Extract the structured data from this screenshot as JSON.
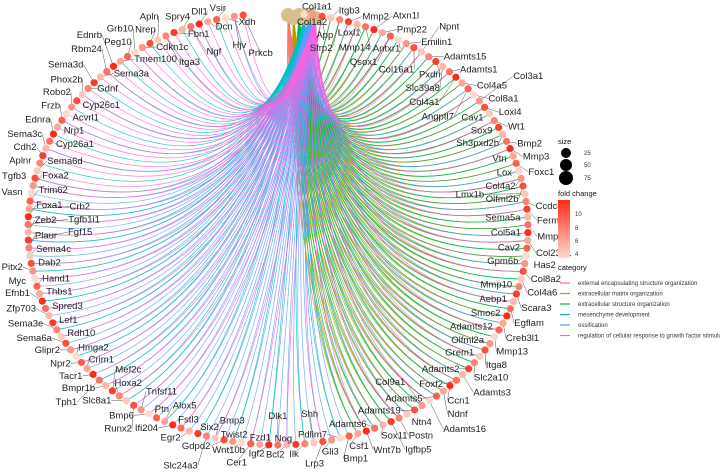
{
  "network": {
    "category_nodes": [
      "external encapsulating structure organization",
      "extracellular matrix organization",
      "extracellular structure organization",
      "mesenchyme development",
      "ossification",
      "regulation of cellular response to growth factor stimulus"
    ],
    "genes": [
      "Col1a1",
      "Col1a2",
      "App",
      "Itgb3",
      "Sfrp2",
      "Mmp2",
      "Loxl1",
      "Mmp14",
      "Atxn1l",
      "Pmp22",
      "Qsox1",
      "Antxr1",
      "Emilin1",
      "Col16a1",
      "Npnt",
      "Adamts15",
      "Pxdn",
      "Slc39a8",
      "Adamts1",
      "Col4a1",
      "Col4a5",
      "Angptl7",
      "Col8a1",
      "Col3a1",
      "Loxl4",
      "Cav1",
      "Wt1",
      "Sox9",
      "Sh3pxd2b",
      "Bmp2",
      "Mmp3",
      "Vtn",
      "Foxc1",
      "Lox",
      "Col4a2",
      "Olfml2b",
      "Lmx1b",
      "Ccdc80",
      "Fermt1",
      "Sema5a",
      "Mmp16",
      "Col5a1",
      "Col23a1",
      "Cav2",
      "Gpm6b",
      "Has2",
      "Col8a2",
      "Col4a6",
      "Mmp10",
      "Scara3",
      "Aebp1",
      "Egflam",
      "Smoc2",
      "Creb3l1",
      "Adamts12",
      "Mmp13",
      "Olfml2a",
      "Itga8",
      "Grem1",
      "Slc2a10",
      "Adamts2",
      "Adamts3",
      "Foxf2",
      "Ccn1",
      "Ndnf",
      "Adamts5",
      "Adamts16",
      "Col9a1",
      "Adamts19",
      "Ntn4",
      "Postn",
      "Igfbp5",
      "Sox11",
      "Adamts6",
      "Wnt7b",
      "Csf1",
      "Bmp1",
      "Pdlim7",
      "Gli3",
      "Lrp3",
      "Shh",
      "Ilk",
      "Nog",
      "Bcl2",
      "Dlk1",
      "Igf2",
      "Fzd1",
      "Cer1",
      "Wnt10b",
      "Twist2",
      "Gdpd2",
      "Bmp3",
      "Slc24a3",
      "Six2",
      "Egr2",
      "Fstl3",
      "Ifi204",
      "Alox5",
      "Ptn",
      "Bmp6",
      "Tnfsf11",
      "Runx2",
      "Slc8a1",
      "Hoxa2",
      "Mef2c",
      "Bmpr1b",
      "Tph1",
      "Tacr1",
      "Crim1",
      "Npr2",
      "Hmga2",
      "Glipr2",
      "Sema6a",
      "Rdh10",
      "Sema3e",
      "Lef1",
      "Zfp703",
      "Spred3",
      "Efnb1",
      "Thbs1",
      "Hand1",
      "Myc",
      "Pitx2",
      "Dab2",
      "Sema4c",
      "Plaur",
      "Fgf15",
      "Zeb2",
      "Tgfb1i1",
      "Foxa1",
      "Crb2",
      "Trim62",
      "Vasn",
      "Foxa2",
      "Tgfb3",
      "Sema6d",
      "Aplnr",
      "Cdh2",
      "Sema3c",
      "Cyp26a1",
      "Ednra",
      "Nrp1",
      "Frzb",
      "Acvrl1",
      "Robo2",
      "Cyp26c1",
      "Phox2b",
      "Gdnf",
      "Sema3d",
      "Sema3a",
      "Rbm24",
      "Ednrb",
      "Tmem100",
      "Peg10",
      "Grb10",
      "Cdkn1c",
      "Nrep",
      "Apln",
      "Itga3",
      "Fbn1",
      "Spry4",
      "Ngf",
      "Dll1",
      "Dcn",
      "Vsir",
      "Xdh",
      "Hjv",
      "Prkcb"
    ]
  },
  "legend": {
    "size_title": "size",
    "size_values": [
      "25",
      "50",
      "75"
    ],
    "fold_title": "fold change",
    "fold_ticks": [
      "10",
      "8",
      "6",
      "4"
    ],
    "fold_colors": {
      "low": "#FFD9CC",
      "high": "#FF2A1A"
    },
    "category_title": "category",
    "categories": [
      {
        "label": "external encapsulating structure organization",
        "color": "#F8766D"
      },
      {
        "label": "extracellular matrix organization",
        "color": "#B79F00"
      },
      {
        "label": "extracellular structure organization",
        "color": "#00BA38"
      },
      {
        "label": "mesenchyme development",
        "color": "#00BFC4"
      },
      {
        "label": "ossification",
        "color": "#619CFF"
      },
      {
        "label": "regulation of cellular response to growth factor stimulus",
        "color": "#F564E3"
      }
    ]
  }
}
